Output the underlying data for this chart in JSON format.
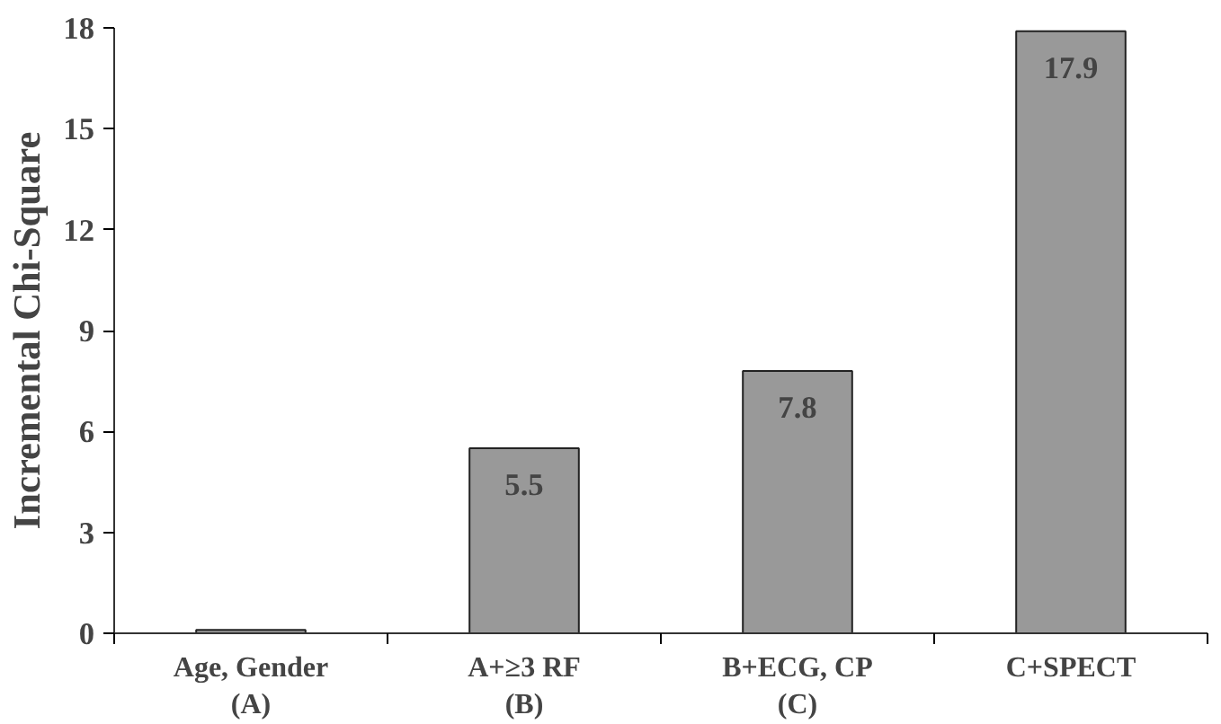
{
  "chart_data": {
    "type": "bar",
    "ylabel": "Incremental Chi-Square",
    "categories": [
      "Age, Gender\n(A)",
      "A+≥3 RF\n(B)",
      "B+ECG, CP\n(C)",
      "C+SPECT"
    ],
    "values": [
      0.1,
      5.5,
      7.8,
      17.9
    ],
    "value_labels": [
      null,
      "5.5",
      "7.8",
      "17.9"
    ],
    "color": "#999999",
    "ylim": [
      0,
      18
    ],
    "yticks": [
      0,
      3,
      6,
      9,
      12,
      15,
      18
    ],
    "grid": false
  }
}
